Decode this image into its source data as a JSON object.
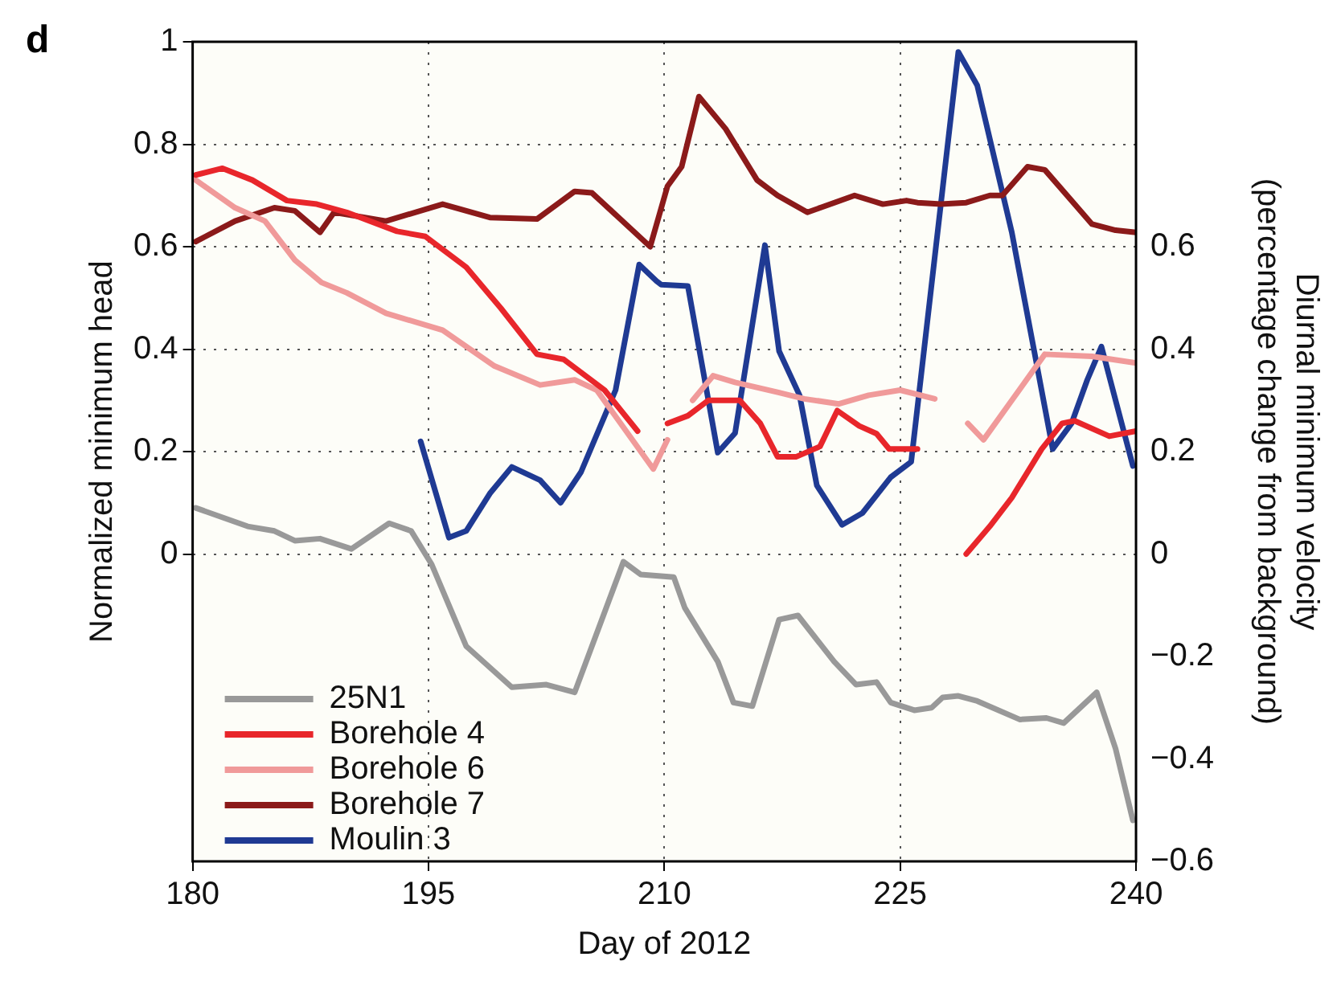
{
  "chart_data": {
    "type": "line",
    "xlabel": "Day of 2012",
    "ylabel": "Normalized minimum head",
    "y2label": "Diurnal minimum velocity (percentage change from background)",
    "annotations": [
      "d"
    ],
    "xlim": [
      180,
      240
    ],
    "xticks": [
      180,
      195,
      210,
      225,
      240
    ],
    "ylim": [
      -0.6,
      1
    ],
    "yticks": [
      0,
      0.2,
      0.4,
      0.6,
      0.8,
      1
    ],
    "y2lim": [
      -0.6,
      1
    ],
    "y2ticks": [
      -0.6,
      -0.4,
      -0.2,
      0,
      0.2,
      0.4,
      0.6
    ],
    "grid": true,
    "legend": "bottom left",
    "line_style": "solid",
    "marker": "none",
    "series": [
      {
        "name": "25N1",
        "color": "#999999",
        "x": [
          180.2,
          183.5,
          185.2,
          186.5,
          188.1,
          190.1,
          192.5,
          193.9,
          195.2,
          197.4,
          200.3,
          202.5,
          204.3,
          207.4,
          208.5,
          210.6,
          211.3,
          213.4,
          214.4,
          215.6,
          217.3,
          218.5,
          220.8,
          222.2,
          223.5,
          224.4,
          225.9,
          227,
          227.7,
          228.7,
          229.9,
          232.6,
          234.3,
          235.4,
          237.5,
          238.7,
          239.8
        ],
        "values": [
          0.09,
          0.054,
          0.045,
          0.026,
          0.03,
          0.01,
          0.06,
          0.045,
          -0.02,
          -0.18,
          -0.26,
          -0.255,
          -0.27,
          -0.015,
          -0.04,
          -0.045,
          -0.105,
          -0.21,
          -0.29,
          -0.297,
          -0.128,
          -0.12,
          -0.21,
          -0.255,
          -0.25,
          -0.29,
          -0.305,
          -0.3,
          -0.28,
          -0.277,
          -0.287,
          -0.323,
          -0.32,
          -0.33,
          -0.27,
          -0.38,
          -0.52
        ]
      },
      {
        "name": "Borehole 4",
        "color": "#e8262b",
        "x": [
          180.2,
          181.9,
          183.8,
          186,
          187.9,
          189.8,
          193,
          194.8,
          197.4,
          199.6,
          201.9,
          203.6,
          206.2,
          208.3,
          209.2,
          210.2,
          211.5,
          212.8,
          214.8,
          216.1,
          217.2,
          218.4,
          219.9,
          221,
          222.4,
          223.5,
          224.3,
          226.1,
          227.6,
          229.2,
          230.7,
          232.1,
          234,
          235.3,
          236.1,
          238.3,
          240
        ],
        "values": [
          0.74,
          0.753,
          0.73,
          0.69,
          0.683,
          0.667,
          0.63,
          0.62,
          0.56,
          0.48,
          0.39,
          0.38,
          0.32,
          0.24,
          null,
          0.255,
          0.27,
          0.3,
          0.3,
          0.255,
          0.19,
          0.19,
          0.21,
          0.28,
          0.25,
          0.235,
          0.205,
          0.205,
          null,
          0,
          0.054,
          0.11,
          0.205,
          0.255,
          0.26,
          0.23,
          0.24
        ]
      },
      {
        "name": "Borehole 6",
        "color": "#f09a9a",
        "x": [
          180.2,
          182.7,
          184.6,
          186.5,
          188.2,
          189.8,
          192.3,
          195.9,
          199.2,
          202.1,
          204.3,
          205.7,
          209.3,
          210.2,
          211,
          211.8,
          213.1,
          214.5,
          217.2,
          218.9,
          221.1,
          223,
          225,
          227.2,
          228.3,
          229.3,
          230.3,
          232.1,
          234.2,
          237.2,
          240
        ],
        "values": [
          0.73,
          0.676,
          0.65,
          0.574,
          0.53,
          0.51,
          0.47,
          0.437,
          0.367,
          0.33,
          0.34,
          0.32,
          0.166,
          0.223,
          null,
          0.3,
          0.348,
          0.335,
          0.316,
          0.303,
          0.293,
          0.31,
          0.32,
          0.303,
          null,
          0.255,
          0.223,
          0.3,
          0.39,
          0.386,
          0.373
        ]
      },
      {
        "name": "Borehole 7",
        "color": "#8b1a1a",
        "x": [
          180.2,
          182.7,
          185.2,
          186.5,
          188.1,
          189,
          192.3,
          195.9,
          198.9,
          201.9,
          204.3,
          205.4,
          209.1,
          210.2,
          211.1,
          212.2,
          213.9,
          215.9,
          217.2,
          219.1,
          222.1,
          223.9,
          225.4,
          226.1,
          227.6,
          229.2,
          230.7,
          231.5,
          233.1,
          234.2,
          237.2,
          238.7,
          240
        ],
        "values": [
          0.61,
          0.65,
          0.676,
          0.67,
          0.628,
          0.667,
          0.65,
          0.683,
          0.657,
          0.654,
          0.708,
          0.705,
          0.6,
          0.718,
          0.756,
          0.893,
          0.83,
          0.73,
          0.7,
          0.667,
          0.7,
          0.683,
          0.69,
          0.686,
          0.683,
          0.686,
          0.7,
          0.7,
          0.756,
          0.75,
          0.644,
          0.632,
          0.628
        ]
      },
      {
        "name": "Moulin 3",
        "color": "#1f3a93",
        "x": [
          194.5,
          196.3,
          197.4,
          198.9,
          200.3,
          202.1,
          203.4,
          204.7,
          206.9,
          208.4,
          209.5,
          209.8,
          211.5,
          213.4,
          214.5,
          216.4,
          217.3,
          218.6,
          219.7,
          221.3,
          222.6,
          224.4,
          225.7,
          228.7,
          229.9,
          232.1,
          234.7,
          235.9,
          236.9,
          237.8,
          239.8
        ],
        "values": [
          0.22,
          0.032,
          0.045,
          0.118,
          0.17,
          0.144,
          0.1,
          0.16,
          0.32,
          0.565,
          0.533,
          0.526,
          0.523,
          0.198,
          0.236,
          0.603,
          0.396,
          0.31,
          0.134,
          0.057,
          0.08,
          0.15,
          0.18,
          0.98,
          0.915,
          0.628,
          0.205,
          0.255,
          0.34,
          0.405,
          0.172
        ]
      }
    ]
  }
}
